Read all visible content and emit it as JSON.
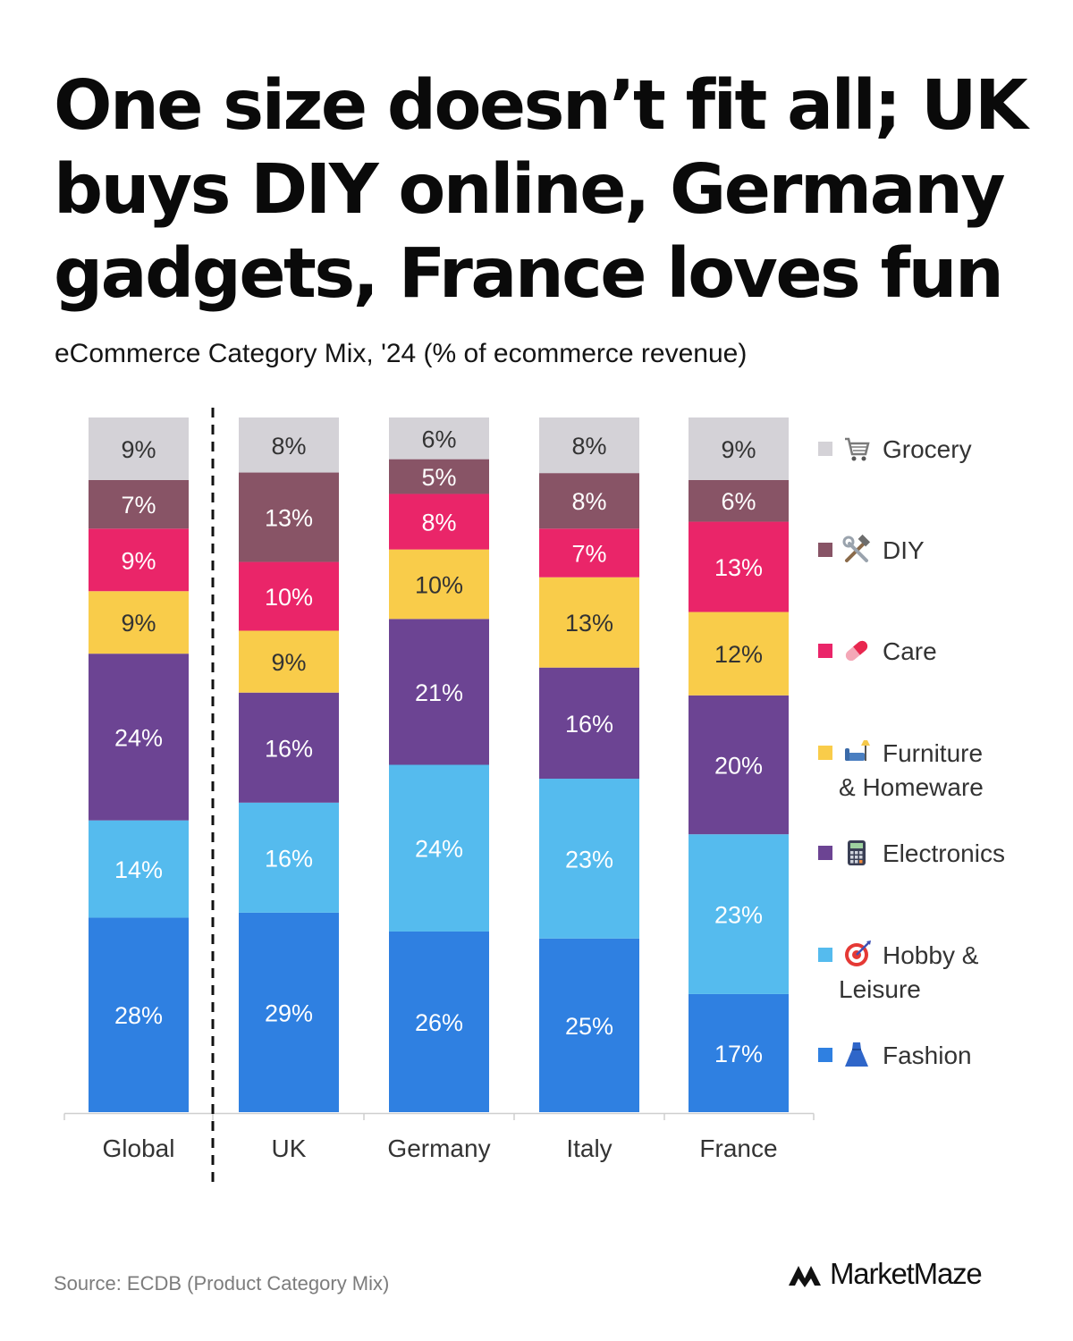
{
  "header": {
    "title": "One size doesn’t fit all; UK buys DIY online, Germany gadgets, France loves fun",
    "subtitle": "eCommerce Category Mix, '24 (% of ecommerce revenue)"
  },
  "footer": {
    "source": "Source: ECDB (Product Category Mix)",
    "brand": "MarketMaze",
    "brand_icon": "marketmaze-logo-icon"
  },
  "chart_data": {
    "type": "bar",
    "stacked": true,
    "categories": [
      "Global",
      "UK",
      "Germany",
      "Italy",
      "France"
    ],
    "value_unit": "%",
    "series": [
      {
        "name": "Fashion",
        "icon": "dress-icon",
        "color": "#2F80E1",
        "values": [
          28,
          29,
          26,
          25,
          17
        ]
      },
      {
        "name": "Hobby & Leisure",
        "icon": "dart-target-icon",
        "color": "#55BBEE",
        "values": [
          14,
          16,
          24,
          23,
          23
        ]
      },
      {
        "name": "Electronics",
        "icon": "calculator-icon",
        "color": "#6C4493",
        "values": [
          24,
          16,
          21,
          16,
          20
        ]
      },
      {
        "name": "Furniture & Homeware",
        "icon": "sofa-lamp-icon",
        "color": "#F9CC4A",
        "values": [
          9,
          9,
          10,
          13,
          12
        ]
      },
      {
        "name": "Care",
        "icon": "pill-icon",
        "color": "#EA2569",
        "values": [
          9,
          10,
          8,
          7,
          13
        ]
      },
      {
        "name": "DIY",
        "icon": "hammer-wrench-icon",
        "color": "#885466",
        "values": [
          7,
          13,
          5,
          8,
          6
        ]
      },
      {
        "name": "Grocery",
        "icon": "shopping-cart-icon",
        "color": "#D4D2D7",
        "values": [
          9,
          8,
          6,
          8,
          9
        ]
      }
    ],
    "legend_position": "right",
    "grid": false,
    "separator_after_category": "Global"
  }
}
